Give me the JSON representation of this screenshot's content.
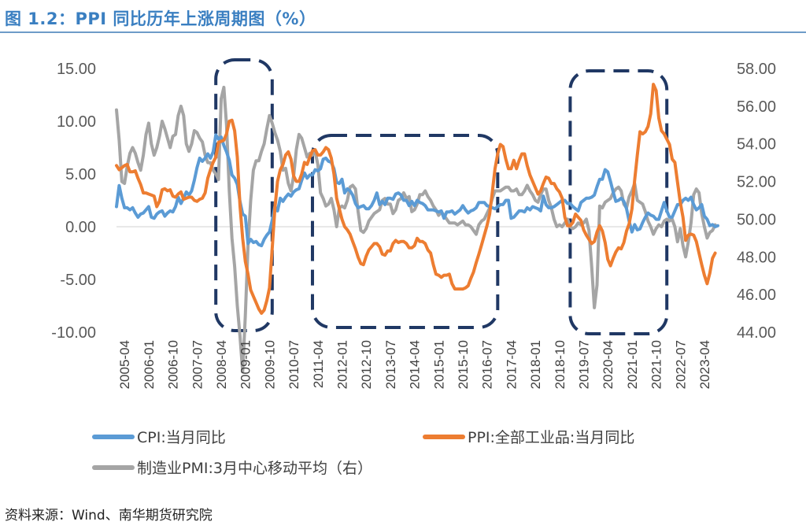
{
  "figure": {
    "title": "图 1.2：PPI 同比历年上涨周期图（%）",
    "source": "资料来源：Wind、南华期货研究院"
  },
  "colors": {
    "title": "#3a7fc1",
    "cpi": "#5b9bd5",
    "ppi": "#ed7d31",
    "pmi": "#a5a5a5",
    "highlight_box": "#203864"
  },
  "chart_data": {
    "type": "line",
    "title": "",
    "y_left": {
      "ticks": [
        "15.00",
        "10.00",
        "5.00",
        "0.00",
        "-5.00",
        "-10.00"
      ],
      "lim": [
        -10,
        15
      ]
    },
    "y_right": {
      "ticks": [
        "58.00",
        "56.00",
        "54.00",
        "52.00",
        "50.00",
        "48.00",
        "46.00",
        "44.00"
      ],
      "lim": [
        44,
        58
      ]
    },
    "x_ticks": [
      "2005-04",
      "2006-01",
      "2006-10",
      "2007-07",
      "2008-04",
      "2009-01",
      "2009-10",
      "2010-07",
      "2011-04",
      "2012-01",
      "2012-10",
      "2013-07",
      "2014-04",
      "2015-01",
      "2015-10",
      "2016-07",
      "2017-04",
      "2018-01",
      "2018-10",
      "2019-07",
      "2020-04",
      "2021-01",
      "2021-10",
      "2022-07",
      "2023-04"
    ],
    "x_range": [
      "2005-01",
      "2023-09"
    ],
    "legend": {
      "placement": "bottom"
    },
    "highlight_periods": [
      {
        "start": "2008-02",
        "end": "2009-11"
      },
      {
        "start": "2011-02",
        "end": "2016-11"
      },
      {
        "start": "2019-02",
        "end": "2022-02"
      }
    ],
    "series": [
      {
        "name": "CPI:当月同比",
        "axis": "left",
        "color": "#5b9bd5",
        "start": "2005-01",
        "values": [
          1.9,
          3.9,
          2.7,
          1.8,
          1.8,
          1.6,
          1.8,
          1.3,
          0.9,
          1.2,
          1.3,
          1.6,
          1.9,
          0.9,
          0.8,
          1.2,
          1.4,
          1.5,
          1.0,
          1.3,
          1.5,
          1.4,
          1.9,
          2.8,
          2.2,
          2.7,
          3.3,
          3.0,
          3.4,
          4.4,
          5.6,
          6.5,
          6.2,
          6.5,
          6.9,
          6.5,
          7.1,
          8.7,
          8.3,
          8.5,
          7.7,
          7.1,
          6.3,
          4.9,
          4.6,
          4.0,
          2.4,
          1.2,
          1.0,
          -1.6,
          -1.2,
          -1.5,
          -1.4,
          -1.7,
          -1.8,
          -1.2,
          -0.8,
          -0.5,
          0.6,
          1.9,
          1.5,
          2.7,
          2.4,
          2.8,
          3.1,
          2.9,
          3.3,
          3.5,
          3.6,
          4.4,
          5.1,
          4.6,
          4.9,
          4.9,
          5.4,
          5.3,
          5.5,
          6.4,
          6.5,
          6.2,
          6.1,
          5.5,
          4.2,
          4.1,
          4.5,
          3.2,
          3.6,
          3.4,
          3.0,
          2.2,
          1.8,
          1.9,
          2.0,
          1.7,
          1.7,
          2.0,
          2.5,
          3.2,
          2.1,
          2.4,
          2.1,
          2.7,
          2.7,
          2.6,
          3.1,
          3.2,
          3.0,
          2.5,
          2.5,
          2.0,
          2.4,
          2.0,
          2.5,
          2.3,
          2.2,
          2.0,
          1.6,
          1.6,
          1.6,
          1.5,
          1.4,
          1.5,
          0.8,
          1.4,
          1.4,
          1.5,
          1.2,
          1.4,
          1.6,
          2.0,
          1.6,
          1.3,
          1.5,
          1.6,
          1.8,
          2.3,
          2.3,
          2.3,
          2.0,
          1.9,
          1.8,
          1.7,
          1.9,
          2.1,
          2.1,
          2.5,
          2.5,
          0.8,
          0.9,
          1.2,
          1.5,
          1.5,
          1.4,
          1.8,
          1.6,
          1.9,
          1.8,
          1.7,
          1.5,
          2.9,
          2.1,
          1.8,
          1.8,
          1.9,
          2.1,
          2.3,
          2.5,
          2.5,
          2.2,
          2.2,
          1.9,
          1.7,
          1.5,
          2.3,
          2.5,
          2.7,
          2.7,
          2.8,
          3.0,
          3.8,
          4.5,
          4.5,
          5.4,
          5.2,
          4.3,
          3.3,
          2.4,
          2.5,
          2.7,
          2.4,
          1.7,
          0.5,
          -0.5,
          0.2,
          -0.3,
          -0.2,
          0.4,
          0.9,
          1.3,
          1.1,
          1.0,
          0.7,
          0.7,
          1.5,
          2.3,
          1.5,
          0.9,
          0.9,
          1.5,
          2.1,
          2.1,
          2.5,
          2.7,
          2.5,
          2.8,
          2.1,
          1.6,
          1.8,
          2.1,
          1.0,
          0.7,
          0.1,
          0.2,
          0.0,
          0.1
        ]
      },
      {
        "name": "PPI:全部工业品:当月同比",
        "axis": "left",
        "color": "#ed7d31",
        "start": "2005-01",
        "values": [
          5.8,
          5.4,
          5.6,
          5.8,
          5.9,
          5.2,
          5.2,
          5.3,
          4.6,
          4.0,
          3.2,
          3.2,
          3.1,
          3.0,
          2.9,
          1.9,
          2.4,
          3.5,
          3.6,
          3.4,
          3.5,
          2.9,
          2.8,
          3.1,
          3.3,
          2.6,
          2.7,
          2.8,
          2.8,
          2.5,
          2.4,
          2.6,
          2.7,
          3.2,
          4.6,
          5.4,
          6.1,
          6.6,
          8.0,
          8.1,
          8.2,
          8.8,
          10.0,
          10.1,
          9.1,
          6.6,
          2.0,
          -1.1,
          -3.3,
          -4.5,
          -6.0,
          -6.6,
          -7.2,
          -7.8,
          -8.2,
          -7.9,
          -7.0,
          -5.8,
          -2.1,
          1.7,
          4.3,
          5.4,
          5.9,
          6.8,
          7.1,
          6.4,
          4.8,
          4.3,
          4.3,
          5.0,
          6.1,
          5.9,
          6.6,
          7.2,
          7.3,
          6.8,
          6.8,
          7.1,
          7.5,
          7.3,
          6.5,
          5.0,
          2.7,
          1.7,
          0.7,
          0.0,
          -0.3,
          -0.7,
          -1.4,
          -2.1,
          -2.9,
          -3.5,
          -3.6,
          -2.8,
          -2.2,
          -1.9,
          -1.6,
          -1.6,
          -1.9,
          -2.6,
          -2.7,
          -2.3,
          -2.3,
          -1.6,
          -1.3,
          -1.5,
          -1.4,
          -1.4,
          -1.6,
          -2.0,
          -2.0,
          -1.8,
          -1.1,
          -1.4,
          -1.4,
          -1.6,
          -2.2,
          -2.5,
          -3.6,
          -4.5,
          -4.6,
          -4.8,
          -4.6,
          -4.6,
          -4.5,
          -5.4,
          -5.9,
          -5.9,
          -5.9,
          -5.9,
          -5.8,
          -5.6,
          -4.9,
          -4.3,
          -3.4,
          -2.6,
          -1.7,
          -0.8,
          0.1,
          1.2,
          3.3,
          5.5,
          6.9,
          7.8,
          7.6,
          6.4,
          5.5,
          5.5,
          6.3,
          5.5,
          6.3,
          6.9,
          6.9,
          5.8,
          4.9,
          4.3,
          3.7,
          3.1,
          3.4,
          4.1,
          4.7,
          4.6,
          4.1,
          4.1,
          3.6,
          3.3,
          2.7,
          0.9,
          0.1,
          0.1,
          0.4,
          1.2,
          0.9,
          0.6,
          -0.3,
          -0.8,
          -1.2,
          -1.6,
          -1.4,
          -0.5,
          0.1,
          -0.4,
          -1.5,
          -3.1,
          -3.7,
          -3.0,
          -2.4,
          -2.0,
          -2.1,
          -1.5,
          -0.4,
          0.3,
          1.7,
          4.4,
          6.8,
          9.0,
          8.8,
          9.0,
          9.5,
          10.7,
          13.5,
          12.9,
          10.3,
          9.1,
          8.8,
          8.3,
          7.8,
          6.4,
          6.1,
          4.2,
          2.3,
          0.9,
          -1.3,
          -0.8,
          -0.7,
          -0.8,
          -1.4,
          -2.5,
          -3.6,
          -4.6,
          -5.4,
          -4.4,
          -3.0,
          -2.5
        ]
      },
      {
        "name": "制造业PMI:3月中心移动平均（右）",
        "axis": "right",
        "color": "#a5a5a5",
        "start": "2005-01",
        "values": [
          55.8,
          54.2,
          52.0,
          51.9,
          52.8,
          53.5,
          53.8,
          53.5,
          53.0,
          52.6,
          53.4,
          54.5,
          55.1,
          54.0,
          53.4,
          53.8,
          54.4,
          55.2,
          54.8,
          54.3,
          53.8,
          54.4,
          54.5,
          55.5,
          56.0,
          55.5,
          54.0,
          53.6,
          54.0,
          54.7,
          54.6,
          54.3,
          54.1,
          53.4,
          53.0,
          53.0,
          52.6,
          52.4,
          52.1,
          56.4,
          57.0,
          55.0,
          51.5,
          49.0,
          47.5,
          45.4,
          43.8,
          41.9,
          44.9,
          48.6,
          51.0,
          52.6,
          53.1,
          53.1,
          53.6,
          54.0,
          54.8,
          55.5,
          55.1,
          54.6,
          54.2,
          53.6,
          52.6,
          52.7,
          51.9,
          51.5,
          52.3,
          53.7,
          54.5,
          54.3,
          53.8,
          53.3,
          53.5,
          53.4,
          53.6,
          52.9,
          51.4,
          51.1,
          50.7,
          50.8,
          51.1,
          50.5,
          49.6,
          50.6,
          50.7,
          50.6,
          51.0,
          51.7,
          51.8,
          51.6,
          50.4,
          49.4,
          49.3,
          49.5,
          49.9,
          50.1,
          50.3,
          50.4,
          50.5,
          51.0,
          51.1,
          50.8,
          50.8,
          50.3,
          50.5,
          51.0,
          51.1,
          51.4,
          51.1,
          51.2,
          50.4,
          50.5,
          50.8,
          51.3,
          51.3,
          51.5,
          51.2,
          51.0,
          50.7,
          50.5,
          50.2,
          50.4,
          50.2,
          50.0,
          49.8,
          49.8,
          49.8,
          49.7,
          49.8,
          49.9,
          49.7,
          49.7,
          49.6,
          49.4,
          49.2,
          49.7,
          49.9,
          50.0,
          50.3,
          50.6,
          51.1,
          51.5,
          51.5,
          51.5,
          51.6,
          51.7,
          51.7,
          51.5,
          51.5,
          51.6,
          51.3,
          51.3,
          51.5,
          51.8,
          51.5,
          51.3,
          51.0,
          50.9,
          51.3,
          51.6,
          51.6,
          51.0,
          50.6,
          50.0,
          49.6,
          49.7,
          49.6,
          49.8,
          50.0,
          49.6,
          49.5,
          49.6,
          49.8,
          49.7,
          49.8,
          50.0,
          49.4,
          47.5,
          45.3,
          46.5,
          50.7,
          50.6,
          50.9,
          51.0,
          51.1,
          51.4,
          51.6,
          51.7,
          51.5,
          50.8,
          50.6,
          51.2,
          51.5,
          51.9,
          51.0,
          50.9,
          50.8,
          50.4,
          49.9,
          49.6,
          49.2,
          49.5,
          49.7,
          49.6,
          49.9,
          50.0,
          49.9,
          50.0,
          49.6,
          48.8,
          49.5,
          48.6,
          48.0,
          48.8,
          49.8,
          51.3,
          51.6,
          51.4,
          50.3,
          49.6,
          49.0,
          49.3,
          49.4,
          49.7
        ]
      }
    ]
  }
}
